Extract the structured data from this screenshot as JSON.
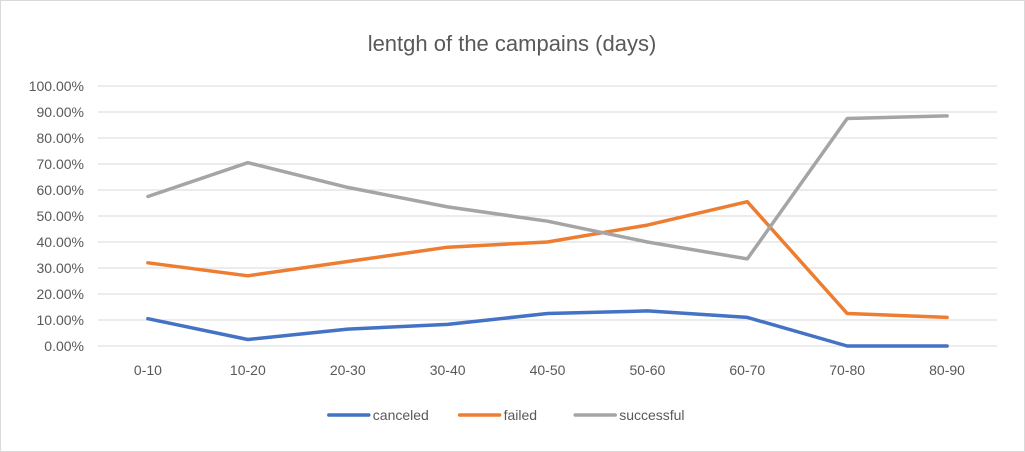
{
  "chart_data": {
    "type": "line",
    "title": "lentgh of the campains (days)",
    "categories": [
      "0-10",
      "10-20",
      "20-30",
      "30-40",
      "40-50",
      "50-60",
      "60-70",
      "70-80",
      "80-90"
    ],
    "y_ticks": [
      "0.00%",
      "10.00%",
      "20.00%",
      "30.00%",
      "40.00%",
      "50.00%",
      "60.00%",
      "70.00%",
      "80.00%",
      "90.00%",
      "100.00%"
    ],
    "ylim": [
      0,
      1
    ],
    "ytick_step": 0.1,
    "grid": true,
    "legend_position": "bottom",
    "series": [
      {
        "name": "canceled",
        "color": "#4472c4",
        "values": [
          0.105,
          0.025,
          0.065,
          0.083,
          0.125,
          0.135,
          0.11,
          0.0,
          0.0
        ]
      },
      {
        "name": "failed",
        "color": "#ed7d31",
        "values": [
          0.32,
          0.27,
          0.325,
          0.38,
          0.4,
          0.465,
          0.555,
          0.125,
          0.11
        ]
      },
      {
        "name": "successful",
        "color": "#a5a5a5",
        "values": [
          0.575,
          0.705,
          0.61,
          0.535,
          0.48,
          0.4,
          0.335,
          0.875,
          0.885
        ]
      }
    ]
  }
}
